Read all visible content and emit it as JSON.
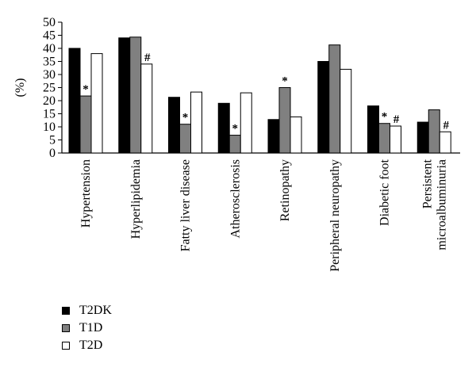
{
  "chart_data": {
    "type": "bar",
    "ylabel": "(%)",
    "xlabel": "",
    "ylim": [
      0,
      50
    ],
    "yticks": [
      0,
      5,
      10,
      15,
      20,
      25,
      30,
      35,
      40,
      45,
      50
    ],
    "categories": [
      "Hypertension",
      "Hyperlipidemia",
      "Fatty liver disease",
      "Atherosclerosis",
      "Retinopathy",
      "Peripheral neuropathy",
      "Diabetic foot",
      [
        "Persistent",
        "microalbuminuria"
      ]
    ],
    "series": [
      {
        "name": "T2DK",
        "color": "#000000",
        "values": [
          40,
          44,
          21.3,
          19,
          12.8,
          35,
          18,
          11.8
        ]
      },
      {
        "name": "T1D",
        "color": "#808080",
        "values": [
          21.8,
          44.3,
          11,
          6.8,
          25,
          41.3,
          11.3,
          16.5
        ]
      },
      {
        "name": "T2D",
        "color": "#ffffff",
        "values": [
          38,
          34,
          23.3,
          23,
          13.8,
          32,
          10.3,
          8.1
        ]
      }
    ],
    "annotations": [
      {
        "category": 0,
        "series": 1,
        "symbol": "*"
      },
      {
        "category": 1,
        "series": 2,
        "symbol": "#"
      },
      {
        "category": 2,
        "series": 1,
        "symbol": "*"
      },
      {
        "category": 3,
        "series": 1,
        "symbol": "*"
      },
      {
        "category": 4,
        "series": 1,
        "symbol": "*"
      },
      {
        "category": 6,
        "series": 1,
        "symbol": "*"
      },
      {
        "category": 6,
        "series": 2,
        "symbol": "#"
      },
      {
        "category": 7,
        "series": 2,
        "symbol": "#"
      }
    ],
    "legend": {
      "position": "bottom-left"
    },
    "grid": false
  }
}
